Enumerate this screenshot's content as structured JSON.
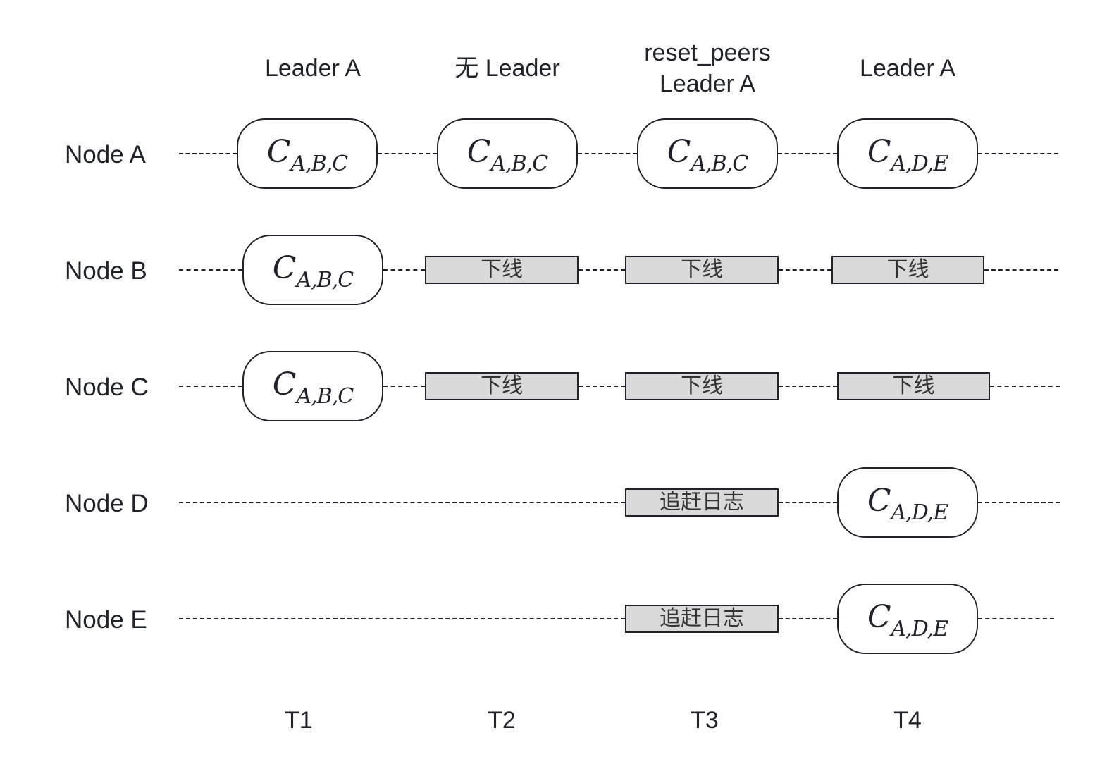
{
  "headers": [
    {
      "lines": [
        "Leader A"
      ]
    },
    {
      "lines": [
        "无 Leader"
      ]
    },
    {
      "lines": [
        "reset_peers",
        "Leader A"
      ]
    },
    {
      "lines": [
        "Leader A"
      ]
    }
  ],
  "time_labels": [
    "T1",
    "T2",
    "T3",
    "T4"
  ],
  "config_old": {
    "base": "C",
    "sub": "A,B,C"
  },
  "config_new": {
    "base": "C",
    "sub": "A,D,E"
  },
  "state_labels": {
    "offline": "下线",
    "catchup": "追赶日志"
  },
  "nodes": [
    {
      "label": "Node A"
    },
    {
      "label": "Node B"
    },
    {
      "label": "Node C"
    },
    {
      "label": "Node D"
    },
    {
      "label": "Node E"
    }
  ]
}
